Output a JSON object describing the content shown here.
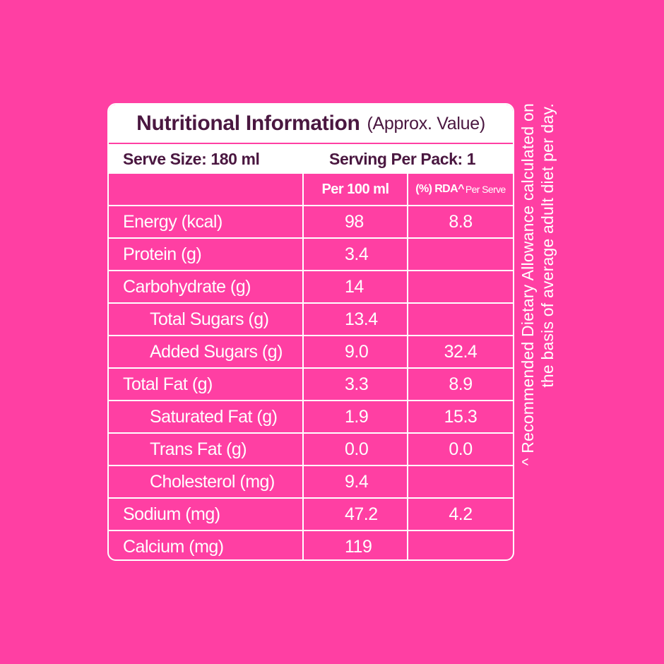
{
  "panel": {
    "title": "Nutritional Information",
    "title_note": "(Approx. Value)",
    "serve_size": "Serve Size: 180 ml",
    "serving_per_pack": "Serving Per Pack: 1",
    "col_per100": "Per 100 ml",
    "col_rda": "(%) RDA^",
    "col_rda_small": "Per Serve"
  },
  "rows": [
    {
      "label": "Energy (kcal)",
      "per100": "98",
      "rda": "8.8"
    },
    {
      "label": "Protein (g)",
      "per100": "3.4",
      "rda": ""
    },
    {
      "label": "Carbohydrate (g)",
      "per100": "14",
      "rda": ""
    },
    {
      "label": "Total Sugars (g)",
      "per100": "13.4",
      "rda": ""
    },
    {
      "label": "Added Sugars (g)",
      "per100": "9.0",
      "rda": "32.4"
    },
    {
      "label": "Total Fat (g)",
      "per100": "3.3",
      "rda": "8.9"
    },
    {
      "label": "Saturated Fat (g)",
      "per100": "1.9",
      "rda": "15.3"
    },
    {
      "label": "Trans Fat (g)",
      "per100": "0.0",
      "rda": "0.0"
    },
    {
      "label": "Cholesterol (mg)",
      "per100": "9.4",
      "rda": ""
    },
    {
      "label": "Sodium (mg)",
      "per100": "47.2",
      "rda": "4.2"
    },
    {
      "label": "Calcium (mg)",
      "per100": "119",
      "rda": ""
    }
  ],
  "footnote": {
    "line1": "^ Recommended Dietary Allowance calculated on",
    "line2": "the basis of average adult diet per day."
  },
  "colors": {
    "background": "#ff3fa3",
    "title_text": "#4a1740",
    "panel_white": "#ffffff"
  }
}
